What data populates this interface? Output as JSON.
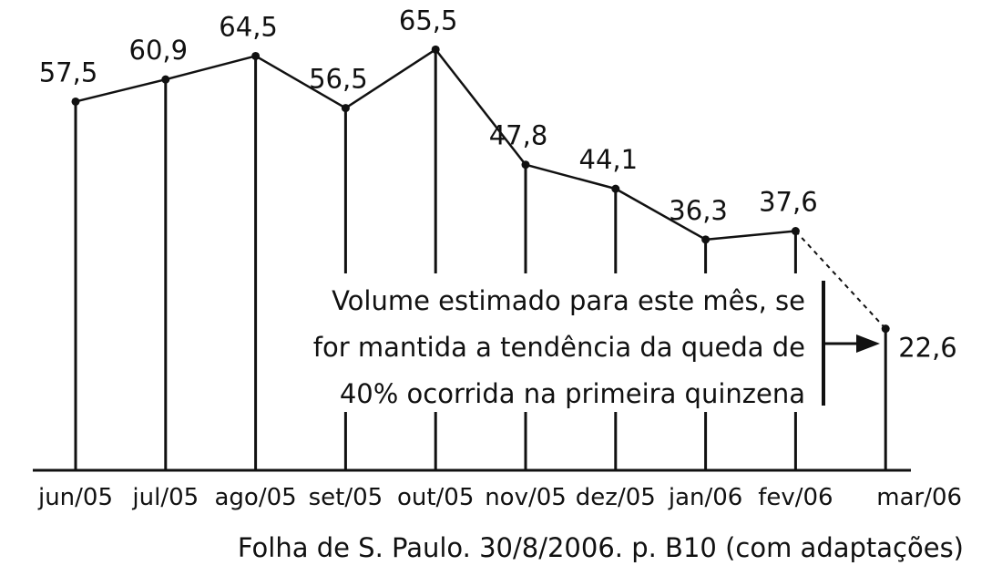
{
  "chart_data": {
    "type": "line",
    "categories": [
      "jun/05",
      "jul/05",
      "ago/05",
      "set/05",
      "out/05",
      "nov/05",
      "dez/05",
      "jan/06",
      "fev/06",
      "mar/06"
    ],
    "values": [
      57.5,
      60.9,
      64.5,
      56.5,
      65.5,
      47.8,
      44.1,
      36.3,
      37.6,
      22.6
    ],
    "value_labels": [
      "57,5",
      "60,9",
      "64,5",
      "56,5",
      "65,5",
      "47,8",
      "44,1",
      "36,3",
      "37,6",
      "22,6"
    ],
    "projected_from_index": 8,
    "annotation": {
      "lines": [
        "Volume estimado para este mês, se",
        "for mantida a tendência da queda de",
        "40% ocorrida na primeira quinzena"
      ],
      "target_index": 9
    },
    "title": "",
    "xlabel": "",
    "ylabel": "",
    "ylim": [
      0,
      75
    ],
    "grid": false,
    "line_color": "#111111"
  },
  "source": "Folha de S. Paulo. 30/8/2006. p. B10 (com adaptações)"
}
